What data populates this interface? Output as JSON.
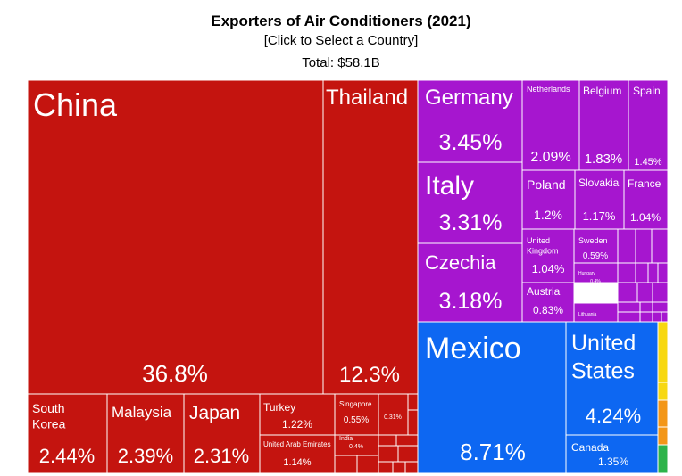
{
  "header": {
    "title": "Exporters of Air Conditioners (2021)",
    "subtitle": "[Click to Select a Country]",
    "total": "Total: $58.1B"
  },
  "colors": {
    "asia": "#c4140f",
    "europe": "#a616cf",
    "americas": "#0d67f2",
    "green": "#2db34a",
    "orange": "#f39618",
    "yellow": "#f7d811",
    "border": "#ffffff"
  },
  "chart_data": {
    "type": "treemap",
    "title": "Exporters of Air Conditioners (2021)",
    "total": "$58.1B",
    "unit": "% of total exports",
    "series": [
      {
        "name": "China",
        "value": 36.8,
        "label": "36.8%"
      },
      {
        "name": "Thailand",
        "value": 12.3,
        "label": "12.3%"
      },
      {
        "name": "South Korea",
        "value": 2.44,
        "label": "2.44%"
      },
      {
        "name": "Malaysia",
        "value": 2.39,
        "label": "2.39%"
      },
      {
        "name": "Japan",
        "value": 2.31,
        "label": "2.31%"
      },
      {
        "name": "Turkey",
        "value": 1.22,
        "label": "1.22%"
      },
      {
        "name": "United Arab Emirates",
        "value": 1.14,
        "label": "1.14%"
      },
      {
        "name": "Singapore",
        "value": 0.55,
        "label": "0.55%"
      },
      {
        "name": "India",
        "value": 0.4,
        "label": "0.4%"
      },
      {
        "name": "",
        "value": 0.31,
        "label": "0.31%"
      },
      {
        "name": "Germany",
        "value": 3.45,
        "label": "3.45%"
      },
      {
        "name": "Italy",
        "value": 3.31,
        "label": "3.31%"
      },
      {
        "name": "Czechia",
        "value": 3.18,
        "label": "3.18%"
      },
      {
        "name": "Netherlands",
        "value": 2.09,
        "label": "2.09%"
      },
      {
        "name": "Belgium",
        "value": 1.83,
        "label": "1.83%"
      },
      {
        "name": "Spain",
        "value": 1.45,
        "label": "1.45%"
      },
      {
        "name": "Poland",
        "value": 1.2,
        "label": "1.2%"
      },
      {
        "name": "Slovakia",
        "value": 1.17,
        "label": "1.17%"
      },
      {
        "name": "France",
        "value": 1.04,
        "label": "1.04%"
      },
      {
        "name": "United Kingdom",
        "value": 1.04,
        "label": "1.04%"
      },
      {
        "name": "Sweden",
        "value": 0.59,
        "label": "0.59%"
      },
      {
        "name": "Hungary",
        "value": 0.4,
        "label": "0.4%"
      },
      {
        "name": "Austria",
        "value": 0.83,
        "label": "0.83%"
      },
      {
        "name": "Lithuania",
        "value": null,
        "label": ""
      },
      {
        "name": "Mexico",
        "value": 8.71,
        "label": "8.71%"
      },
      {
        "name": "United States",
        "value": 4.24,
        "label": "4.24%"
      },
      {
        "name": "Canada",
        "value": 1.35,
        "label": "1.35%"
      }
    ]
  }
}
